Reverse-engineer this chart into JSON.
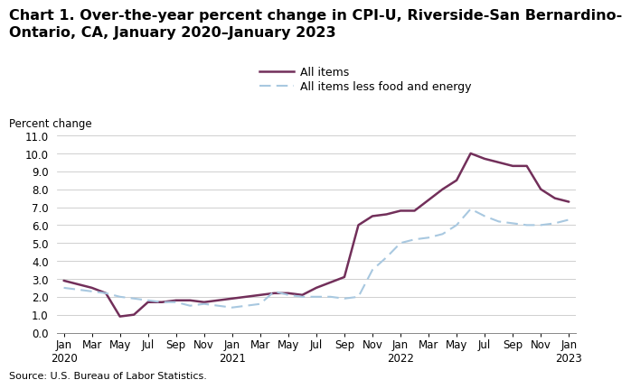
{
  "title_line1": "Chart 1. Over-the-year percent change in CPI-U, Riverside-San Bernardino-",
  "title_line2": "Ontario, CA, January 2020–January 2023",
  "ylabel": "Percent change",
  "source": "Source: U.S. Bureau of Labor Statistics.",
  "all_items_m": [
    2.9,
    2.7,
    2.5,
    2.2,
    0.9,
    1.0,
    1.7,
    1.7,
    1.8,
    1.8,
    1.7,
    1.8,
    1.9,
    2.0,
    2.1,
    2.2,
    2.2,
    2.1,
    2.5,
    2.8,
    3.1,
    6.0,
    6.5,
    6.6,
    6.8,
    6.8,
    7.4,
    8.0,
    8.5,
    10.0,
    9.7,
    9.5,
    9.3,
    9.3,
    8.0,
    7.5,
    7.3
  ],
  "all_less_m": [
    2.5,
    2.4,
    2.3,
    2.2,
    2.0,
    1.9,
    1.8,
    1.7,
    1.7,
    1.5,
    1.6,
    1.5,
    1.4,
    1.5,
    1.6,
    2.3,
    2.1,
    2.0,
    2.0,
    2.0,
    1.9,
    2.0,
    3.5,
    4.2,
    5.0,
    5.2,
    5.3,
    5.5,
    6.0,
    6.9,
    6.5,
    6.2,
    6.1,
    6.0,
    6.0,
    6.1,
    6.3
  ],
  "all_items_color": "#722F5A",
  "all_items_less_color": "#A8C8E0",
  "background_color": "#ffffff",
  "ylim": [
    0.0,
    11.0
  ],
  "yticks": [
    0.0,
    1.0,
    2.0,
    3.0,
    4.0,
    5.0,
    6.0,
    7.0,
    8.0,
    9.0,
    10.0,
    11.0
  ],
  "title_fontsize": 11.5,
  "legend_fontsize": 9,
  "axis_fontsize": 8.5,
  "source_fontsize": 8
}
